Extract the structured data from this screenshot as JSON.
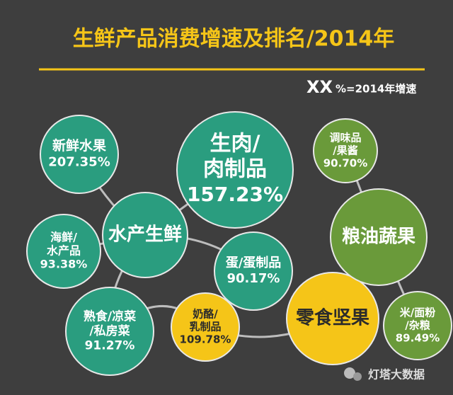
{
  "header": {
    "title": "生鲜产品消费增速及排名/2014年"
  },
  "legend": {
    "key": "XX",
    "text": "%=2014年增速"
  },
  "nodes": [
    {
      "label": [
        "新鲜水果"
      ],
      "value": "207.35%"
    },
    {
      "label": [
        "生肉/",
        "肉制品"
      ],
      "value": "157.23%"
    },
    {
      "label": [
        "水产生鲜"
      ]
    },
    {
      "label": [
        "海鲜/",
        "水产品"
      ],
      "value": "93.38%"
    },
    {
      "label": [
        "熟食/凉菜",
        "/私房菜"
      ],
      "value": "91.27%"
    },
    {
      "label": [
        "蛋/蛋制品"
      ],
      "value": "90.17%"
    },
    {
      "label": [
        "奶酪/",
        "乳制品"
      ],
      "value": "109.78%"
    },
    {
      "label": [
        "零食坚果"
      ]
    },
    {
      "label": [
        "调味品",
        "/果酱"
      ],
      "value": "90.70%"
    },
    {
      "label": [
        "粮油蔬果"
      ]
    },
    {
      "label": [
        "米/面粉",
        "/杂粮"
      ],
      "value": "89.49%"
    }
  ],
  "watermark": "灯塔大数据"
}
